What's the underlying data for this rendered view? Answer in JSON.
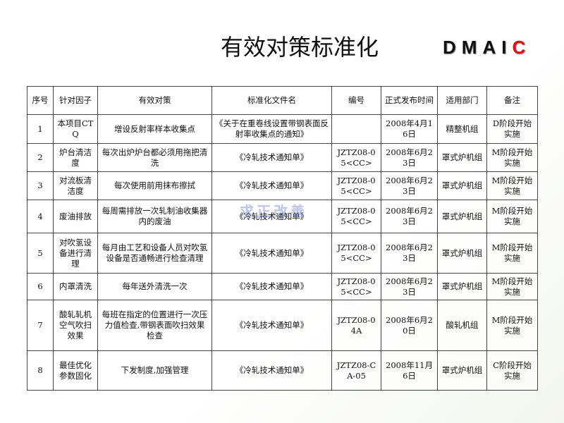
{
  "header": {
    "title": "有效对策标准化",
    "dmaic": [
      "D",
      "M",
      "A",
      "I",
      "C"
    ]
  },
  "watermark": "求正改善",
  "table": {
    "columns": [
      "序号",
      "针对因子",
      "有效对策",
      "标准化文件名",
      "编号",
      "正式发布时间",
      "适用部门",
      "备注"
    ],
    "rows": [
      [
        "1",
        "本项目CTQ",
        "增设反射率样本收集点",
        "《关于在重卷线设置带钢表面反射率收集点的通知》",
        null,
        "2008年4月16日",
        "精整机组",
        "D阶段开始实施"
      ],
      [
        "2",
        "炉台清洁度",
        "每次出炉炉台都必须用拖把清洗",
        "《冷轧技术通知单》",
        "JZTZ08-05<CC>",
        "2008年6月23日",
        "罩式炉机组",
        "M阶段开始实施"
      ],
      [
        "3",
        "对流板清洁度",
        "每次使用前用抹布擦拭",
        "《冷轧技术通知单》",
        "JZTZ08-05<CC>",
        "2008年6月23日",
        "罩式炉机组",
        "M阶段开始实施"
      ],
      [
        "4",
        "废油排放",
        "每周需排放一次轧制油收集器内的废油",
        "《冷轧技术通知单》",
        "JZTZ08-05<CC>",
        "2008年6月23日",
        "罩式炉机组",
        "M阶段开始实施"
      ],
      [
        "5",
        "对吹氢设备进行清理",
        "每月由工艺和设备人员对吹氢设备是否通畅进行检查清理",
        "《冷轧技术通知单》",
        "JZTZ08-05<CC>",
        "2008年6月23日",
        "罩式炉机组",
        "M阶段开始实施"
      ],
      [
        "6",
        "内罩清洗",
        "每年送外清洗一次",
        "《冷轧技术通知单》",
        "JZTZ08-05<CC>",
        "2008年6月23日",
        "罩式炉机组",
        "M阶段开始实施"
      ],
      [
        "7",
        "酸轧轧机空气吹扫效果",
        "每班在指定的位置进行一次压力值检查,带钢表面吹扫效果检查",
        "《冷轧技术通知单》",
        "JZTZ08-04A",
        "2008年6月20日",
        "酸轧机组",
        "M阶段开始实施"
      ],
      [
        "8",
        "最佳优化参数固化",
        "下发制度,加强管理",
        "《冷轧技术通知单》",
        "JZTZ08-CA-05",
        "2008年11月6日",
        "罩式炉机组",
        "C阶段开始实施"
      ]
    ]
  }
}
